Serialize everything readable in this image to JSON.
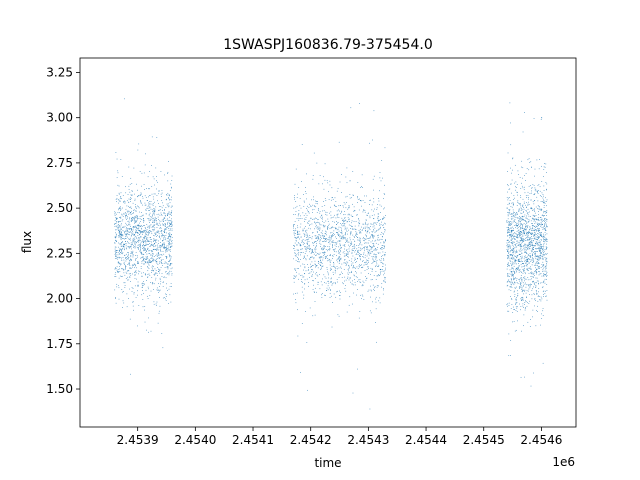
{
  "chart_data": {
    "type": "scatter",
    "title": "1SWASPJ160836.79-375454.0",
    "xlabel": "time",
    "ylabel": "flux",
    "x_offset_label": "1e6",
    "xlim": [
      2.4538,
      2.45466
    ],
    "ylim": [
      1.29,
      3.33
    ],
    "x_ticks": [
      2.4539,
      2.454,
      2.4541,
      2.4542,
      2.4543,
      2.4544,
      2.4545,
      2.4546
    ],
    "x_tick_labels": [
      "2.4539",
      "2.4540",
      "2.4541",
      "2.4542",
      "2.4543",
      "2.4544",
      "2.4545",
      "2.4546"
    ],
    "y_ticks": [
      1.5,
      1.75,
      2.0,
      2.25,
      2.5,
      2.75,
      3.0,
      3.25
    ],
    "y_tick_labels": [
      "1.50",
      "1.75",
      "2.00",
      "2.25",
      "2.50",
      "2.75",
      "3.00",
      "3.25"
    ],
    "grid": false,
    "marker_color": "#1f77b4",
    "observing_seasons": [
      {
        "time_range": [
          2.45386,
          2.45396
        ],
        "flux_center": 2.32,
        "flux_spread": 0.15,
        "flux_range": [
          1.36,
          3.13
        ]
      },
      {
        "time_range": [
          2.45417,
          2.45433
        ],
        "flux_center": 2.3,
        "flux_spread": 0.14,
        "flux_range": [
          1.36,
          3.23
        ]
      },
      {
        "time_range": [
          2.45454,
          2.45461
        ],
        "flux_center": 2.3,
        "flux_spread": 0.17,
        "flux_range": [
          1.38,
          3.16
        ]
      }
    ]
  }
}
